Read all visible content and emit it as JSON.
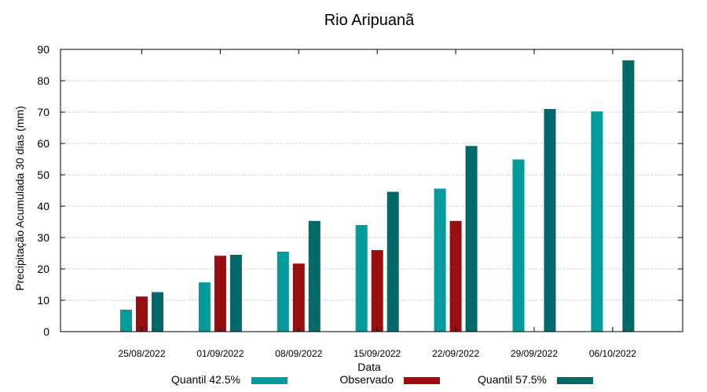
{
  "chart_data": {
    "type": "bar",
    "title": "Rio Aripuanã",
    "xlabel": "Data",
    "ylabel": "Precipitação Acumulada 30 dias (mm)",
    "ylim": [
      0,
      90
    ],
    "yticks": [
      0,
      10,
      20,
      30,
      40,
      50,
      60,
      70,
      80,
      90
    ],
    "grid": true,
    "legend_position": "bottom",
    "categories": [
      "25/08/2022",
      "01/09/2022",
      "08/09/2022",
      "15/09/2022",
      "22/09/2022",
      "29/09/2022",
      "06/10/2022"
    ],
    "series": [
      {
        "name": "Quantil 42.5%",
        "color": "#009b9b",
        "values": [
          7,
          15.7,
          25.5,
          34,
          45.6,
          54.9,
          70.2
        ]
      },
      {
        "name": "Observado",
        "color": "#990f0f",
        "values": [
          11.2,
          24.2,
          21.7,
          26,
          35.3,
          null,
          null
        ]
      },
      {
        "name": "Quantil 57.5%",
        "color": "#006a6a",
        "values": [
          12.6,
          24.5,
          35.3,
          44.6,
          59.2,
          71,
          86.5
        ]
      }
    ]
  }
}
